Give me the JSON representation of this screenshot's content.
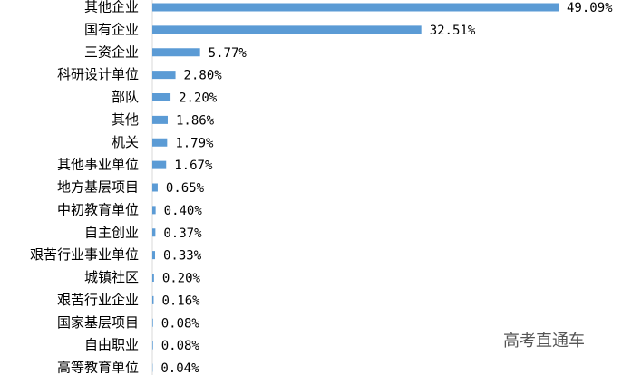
{
  "chart_data": {
    "type": "bar",
    "orientation": "horizontal",
    "color": "#5b9bd5",
    "categories": [
      "其他企业",
      "国有企业",
      "三资企业",
      "科研设计单位",
      "部队",
      "其他",
      "机关",
      "其他事业单位",
      "地方基层项目",
      "中初教育单位",
      "自主创业",
      "艰苦行业事业单位",
      "城镇社区",
      "艰苦行业企业",
      "国家基层项目",
      "自由职业",
      "高等教育单位"
    ],
    "values": [
      49.09,
      32.51,
      5.77,
      2.8,
      2.2,
      1.86,
      1.79,
      1.67,
      0.65,
      0.4,
      0.37,
      0.33,
      0.2,
      0.16,
      0.08,
      0.08,
      0.04
    ],
    "value_labels": [
      "49.09%",
      "32.51%",
      "5.77%",
      "2.80%",
      "2.20%",
      "1.86%",
      "1.79%",
      "1.67%",
      "0.65%",
      "0.40%",
      "0.37%",
      "0.33%",
      "0.20%",
      "0.16%",
      "0.08%",
      "0.08%",
      "0.04%"
    ],
    "watermark": "高考直通车"
  }
}
